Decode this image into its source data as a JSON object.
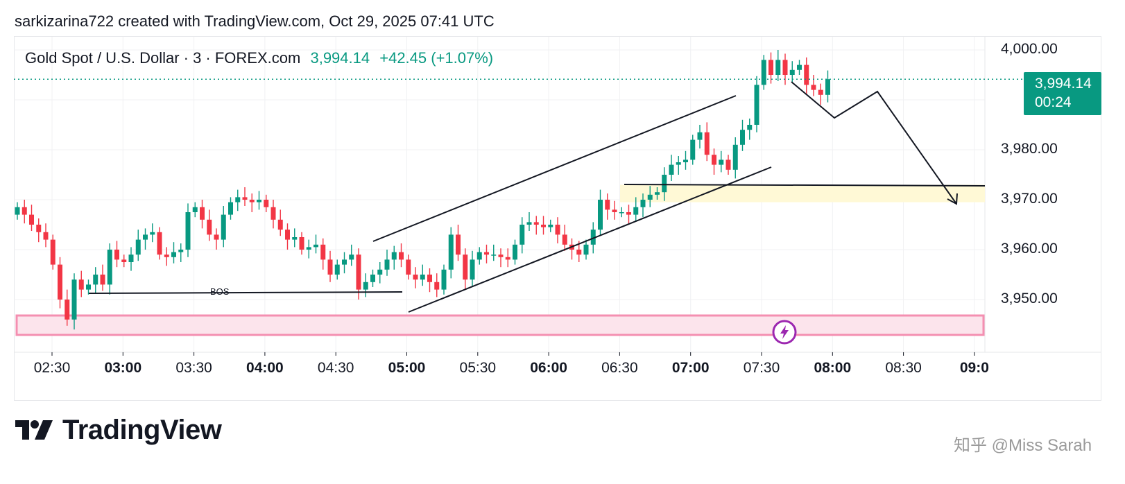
{
  "header": {
    "caption": "sarkizarina722 created with TradingView.com, Oct 29, 2025 07:41 UTC"
  },
  "legend": {
    "symbol": "Gold Spot / U.S. Dollar · 3 · FOREX.com",
    "price": "3,994.14",
    "change": "+42.45 (+1.07%)"
  },
  "price_tag": {
    "price": "3,994.14",
    "countdown": "00:24"
  },
  "annotations": {
    "bos": "BOS"
  },
  "brand": {
    "logo_text": "TradingView",
    "watermark": "知乎 @Miss Sarah"
  },
  "colors": {
    "up": "#089981",
    "down": "#f23645",
    "supply_zone": "#fce4ec",
    "demand_zone": "#fff9d6",
    "text": "#131722"
  },
  "chart_data": {
    "type": "candlestick",
    "timeframe": "3",
    "y_axis": {
      "range": [
        3940,
        4002
      ],
      "ticks": [
        "3,950.00",
        "3,960.00",
        "3,970.00",
        "3,980.00",
        "4,000.00"
      ],
      "tick_values": [
        3950,
        3960,
        3970,
        3980,
        4000
      ]
    },
    "x_axis": {
      "range_minutes": [
        135,
        541
      ],
      "ticks": [
        {
          "label": "02:30",
          "minutes": 150,
          "bold": false
        },
        {
          "label": "03:00",
          "minutes": 180,
          "bold": true
        },
        {
          "label": "03:30",
          "minutes": 210,
          "bold": false
        },
        {
          "label": "04:00",
          "minutes": 240,
          "bold": true
        },
        {
          "label": "04:30",
          "minutes": 270,
          "bold": false
        },
        {
          "label": "05:00",
          "minutes": 300,
          "bold": true
        },
        {
          "label": "05:30",
          "minutes": 330,
          "bold": false
        },
        {
          "label": "06:00",
          "minutes": 360,
          "bold": true
        },
        {
          "label": "06:30",
          "minutes": 390,
          "bold": false
        },
        {
          "label": "07:00",
          "minutes": 420,
          "bold": true
        },
        {
          "label": "07:30",
          "minutes": 450,
          "bold": false
        },
        {
          "label": "08:00",
          "minutes": 480,
          "bold": true
        },
        {
          "label": "08:30",
          "minutes": 510,
          "bold": false
        },
        {
          "label": "09:0",
          "minutes": 540,
          "bold": true
        }
      ]
    },
    "last_price": 3994.14,
    "closes": [
      3968.5,
      3967.0,
      3965.0,
      3963.5,
      3962.0,
      3957.0,
      3950.0,
      3946.0,
      3954.0,
      3952.0,
      3953.0,
      3955.0,
      3953.0,
      3960.0,
      3958.0,
      3957.5,
      3959.0,
      3962.0,
      3963.0,
      3963.5,
      3959.0,
      3958.5,
      3959.5,
      3960.0,
      3967.5,
      3968.5,
      3966.0,
      3963.0,
      3962.0,
      3967.0,
      3969.5,
      3970.5,
      3970.0,
      3969.5,
      3970.0,
      3968.5,
      3966.0,
      3964.0,
      3962.0,
      3962.5,
      3960.0,
      3960.5,
      3961.0,
      3958.0,
      3955.0,
      3957.0,
      3958.0,
      3959.0,
      3952.0,
      3953.5,
      3955.0,
      3956.0,
      3958.0,
      3959.5,
      3958.0,
      3955.0,
      3954.0,
      3955.0,
      3953.5,
      3952.0,
      3956.0,
      3963.0,
      3959.0,
      3954.0,
      3958.0,
      3959.5,
      3959.0,
      3959.0,
      3958.5,
      3958.0,
      3961.0,
      3965.0,
      3965.5,
      3965.0,
      3964.5,
      3965.0,
      3963.0,
      3961.0,
      3960.0,
      3959.0,
      3961.0,
      3964.0,
      3970.0,
      3968.0,
      3967.5,
      3967.5,
      3967.0,
      3968.5,
      3970.0,
      3971.0,
      3971.5,
      3975.0,
      3977.0,
      3977.5,
      3978.0,
      3982.0,
      3983.5,
      3979.0,
      3977.0,
      3978.0,
      3976.0,
      3981.0,
      3984.0,
      3985.0,
      3993.0,
      3998.0,
      3995.0,
      3998.0,
      3995.0,
      3996.0,
      3997.0,
      3993.0,
      3992.0,
      3991.0,
      3994.14
    ]
  }
}
